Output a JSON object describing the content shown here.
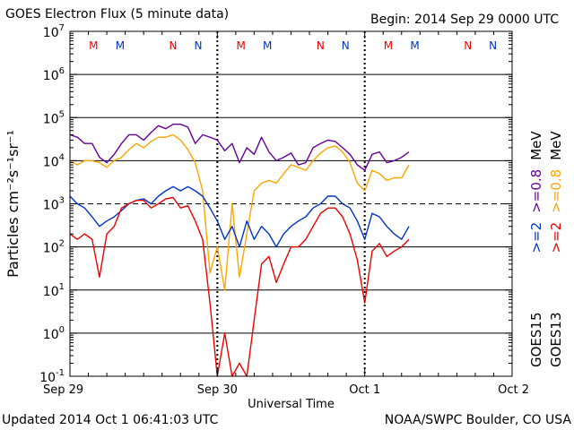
{
  "header": {
    "title": "GOES Electron Flux (5 minute data)",
    "begin": "Begin: 2014 Sep 29 0000 UTC"
  },
  "footer": {
    "updated": "Updated 2014 Oct  1 06:41:03 UTC",
    "source": "NOAA/SWPC Boulder, CO USA"
  },
  "chart_data": {
    "type": "line",
    "title": "GOES Electron Flux (5 minute data)",
    "xlabel": "Universal Time",
    "ylabel": "Particles cm⁻²s⁻¹sr⁻¹",
    "xlim_days": [
      0,
      3
    ],
    "y_scale": "log",
    "ylim": [
      0.1,
      10000000
    ],
    "threshold": 1000,
    "grid": "horizontal decades, dashed at 10^3",
    "x_ticks": [
      {
        "day": 0,
        "label": "Sep 29"
      },
      {
        "day": 1,
        "label": "Sep 30"
      },
      {
        "day": 2,
        "label": "Oct 1"
      },
      {
        "day": 3,
        "label": "Oct 2"
      }
    ],
    "y_ticks": [
      {
        "base": "10",
        "exp": "7"
      },
      {
        "base": "10",
        "exp": "6"
      },
      {
        "base": "10",
        "exp": "5"
      },
      {
        "base": "10",
        "exp": "4"
      },
      {
        "base": "10",
        "exp": "3"
      },
      {
        "base": "10",
        "exp": "2"
      },
      {
        "base": "10",
        "exp": "1"
      },
      {
        "base": "10",
        "exp": "0"
      },
      {
        "base": "10",
        "exp": "-1"
      }
    ],
    "markers": [
      {
        "day": 0.16,
        "label": "M",
        "color": "#ee0000"
      },
      {
        "day": 0.34,
        "label": "M",
        "color": "#0033cc"
      },
      {
        "day": 0.7,
        "label": "N",
        "color": "#ee0000"
      },
      {
        "day": 0.87,
        "label": "N",
        "color": "#0033cc"
      },
      {
        "day": 1.16,
        "label": "M",
        "color": "#ee0000"
      },
      {
        "day": 1.34,
        "label": "M",
        "color": "#0033cc"
      },
      {
        "day": 1.7,
        "label": "N",
        "color": "#ee0000"
      },
      {
        "day": 1.87,
        "label": "N",
        "color": "#0033cc"
      },
      {
        "day": 2.16,
        "label": "M",
        "color": "#ee0000"
      },
      {
        "day": 2.34,
        "label": "M",
        "color": "#0033cc"
      },
      {
        "day": 2.7,
        "label": "N",
        "color": "#ee0000"
      },
      {
        "day": 2.87,
        "label": "N",
        "color": "#0033cc"
      }
    ],
    "legend": [
      {
        "sat": "GOES15",
        "items": [
          {
            "text": ">=2",
            "color": "#0033cc"
          },
          {
            "text": ">=0.8",
            "color": "#660099"
          },
          {
            "text": "MeV",
            "color": "#000000"
          }
        ]
      },
      {
        "sat": "GOES13",
        "items": [
          {
            "text": ">=2",
            "color": "#ee0000"
          },
          {
            "text": ">=0.8",
            "color": "#ffa500"
          },
          {
            "text": "MeV",
            "color": "#000000"
          }
        ]
      }
    ],
    "series": [
      {
        "name": "GOES15 >=0.8 MeV",
        "color": "#660099",
        "x": [
          0,
          0.05,
          0.1,
          0.15,
          0.2,
          0.25,
          0.3,
          0.35,
          0.4,
          0.45,
          0.5,
          0.55,
          0.6,
          0.65,
          0.7,
          0.75,
          0.8,
          0.85,
          0.9,
          0.95,
          1.0,
          1.05,
          1.1,
          1.15,
          1.2,
          1.25,
          1.3,
          1.35,
          1.4,
          1.45,
          1.5,
          1.55,
          1.6,
          1.65,
          1.7,
          1.75,
          1.8,
          1.85,
          1.9,
          1.95,
          2.0,
          2.05,
          2.1,
          2.15,
          2.2,
          2.25,
          2.3
        ],
        "y": [
          40000,
          35000,
          25000,
          25000,
          12000,
          9000,
          14000,
          25000,
          40000,
          40000,
          30000,
          45000,
          65000,
          55000,
          70000,
          70000,
          60000,
          25000,
          40000,
          35000,
          30000,
          17000,
          25000,
          9000,
          20000,
          14000,
          35000,
          16000,
          10000,
          12000,
          15000,
          8000,
          9000,
          20000,
          25000,
          30000,
          28000,
          20000,
          14000,
          8000,
          6000,
          14000,
          16000,
          9000,
          10000,
          12000,
          16000
        ]
      },
      {
        "name": "GOES13 >=0.8 MeV",
        "color": "#ffa500",
        "x": [
          0,
          0.05,
          0.1,
          0.15,
          0.2,
          0.25,
          0.3,
          0.35,
          0.4,
          0.45,
          0.5,
          0.55,
          0.6,
          0.65,
          0.7,
          0.75,
          0.8,
          0.85,
          0.9,
          0.95,
          1.0,
          1.05,
          1.1,
          1.15,
          1.2,
          1.25,
          1.3,
          1.35,
          1.4,
          1.45,
          1.5,
          1.55,
          1.6,
          1.65,
          1.7,
          1.75,
          1.8,
          1.85,
          1.9,
          1.95,
          2.0,
          2.05,
          2.1,
          2.15,
          2.2,
          2.25,
          2.3
        ],
        "y": [
          10000,
          8000,
          10000,
          10000,
          9000,
          7000,
          10000,
          12000,
          18000,
          25000,
          20000,
          28000,
          35000,
          35000,
          40000,
          30000,
          18000,
          9000,
          2000,
          25,
          100,
          10,
          1000,
          20,
          200,
          2000,
          3000,
          3500,
          3000,
          5000,
          8000,
          7000,
          6000,
          10000,
          15000,
          20000,
          22000,
          16000,
          9000,
          3000,
          2000,
          6000,
          5000,
          3500,
          4000,
          4000,
          8000
        ]
      },
      {
        "name": "GOES15 >=2 MeV",
        "color": "#0033cc",
        "x": [
          0,
          0.05,
          0.1,
          0.15,
          0.2,
          0.25,
          0.3,
          0.35,
          0.4,
          0.45,
          0.5,
          0.55,
          0.6,
          0.65,
          0.7,
          0.75,
          0.8,
          0.85,
          0.9,
          0.95,
          1.0,
          1.05,
          1.1,
          1.15,
          1.2,
          1.25,
          1.3,
          1.35,
          1.4,
          1.45,
          1.5,
          1.55,
          1.6,
          1.65,
          1.7,
          1.75,
          1.8,
          1.85,
          1.9,
          1.95,
          2.0,
          2.05,
          2.1,
          2.15,
          2.2,
          2.25,
          2.3
        ],
        "y": [
          1500,
          1000,
          800,
          500,
          300,
          400,
          500,
          700,
          1000,
          1200,
          1300,
          1000,
          1500,
          2000,
          2500,
          2000,
          2500,
          2000,
          1500,
          800,
          400,
          150,
          300,
          100,
          400,
          150,
          300,
          200,
          100,
          200,
          300,
          400,
          500,
          800,
          1000,
          1500,
          1500,
          1000,
          800,
          400,
          150,
          600,
          500,
          300,
          200,
          150,
          300
        ]
      },
      {
        "name": "GOES13 >=2 MeV",
        "color": "#ee0000",
        "x": [
          0,
          0.05,
          0.1,
          0.15,
          0.2,
          0.25,
          0.3,
          0.35,
          0.4,
          0.45,
          0.5,
          0.55,
          0.6,
          0.65,
          0.7,
          0.75,
          0.8,
          0.85,
          0.9,
          0.95,
          1.0,
          1.05,
          1.1,
          1.15,
          1.2,
          1.25,
          1.3,
          1.35,
          1.4,
          1.45,
          1.5,
          1.55,
          1.6,
          1.65,
          1.7,
          1.75,
          1.8,
          1.85,
          1.9,
          1.95,
          2.0,
          2.05,
          2.1,
          2.15,
          2.2,
          2.25,
          2.3
        ],
        "y": [
          200,
          150,
          200,
          150,
          20,
          200,
          300,
          800,
          1000,
          1200,
          1200,
          800,
          1000,
          1300,
          1400,
          800,
          900,
          400,
          150,
          5,
          0.1,
          1,
          0.1,
          0.2,
          0.1,
          2,
          40,
          60,
          15,
          40,
          100,
          100,
          150,
          300,
          600,
          800,
          800,
          500,
          200,
          50,
          5,
          80,
          120,
          60,
          80,
          100,
          150
        ]
      }
    ]
  }
}
